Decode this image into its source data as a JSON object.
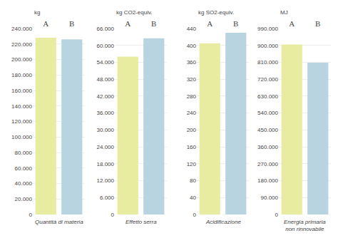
{
  "chart_data": [
    {
      "type": "bar",
      "xlabel": "Quantità di materia",
      "ylabel": "kg",
      "categories": [
        "A",
        "B"
      ],
      "values": [
        228000,
        226000
      ],
      "colors": [
        "#e8eca0",
        "#b8d4e0"
      ],
      "ylim": [
        0,
        240000
      ],
      "yticks": [
        0,
        {
          "value": 20000,
          "label": "20.000"
        },
        {
          "value": 40000,
          "label": "40.000"
        },
        {
          "value": 60000,
          "label": "60.000"
        },
        {
          "value": 80000,
          "label": "80.000"
        },
        {
          "value": 100000,
          "label": "100.000"
        },
        {
          "value": 120000,
          "label": "120.000"
        },
        {
          "value": 140000,
          "label": "140.000"
        },
        {
          "value": 160000,
          "label": "160.000"
        },
        {
          "value": 180000,
          "label": "180.000"
        },
        {
          "value": 200000,
          "label": "200.000"
        },
        {
          "value": 220000,
          "label": "220.000"
        },
        {
          "value": 240000,
          "label": "240.000"
        }
      ],
      "grid": true
    },
    {
      "type": "bar",
      "xlabel": "Effetto serra",
      "ylabel": "kg CO2-equiv.",
      "categories": [
        "A",
        "B"
      ],
      "values": [
        56000,
        62500
      ],
      "colors": [
        "#e8eca0",
        "#b8d4e0"
      ],
      "ylim": [
        0,
        66000
      ],
      "yticks": [
        0,
        {
          "value": 6000,
          "label": "6.000"
        },
        {
          "value": 12000,
          "label": "12.000"
        },
        {
          "value": 18000,
          "label": "18.000"
        },
        {
          "value": 24000,
          "label": "24.000"
        },
        {
          "value": 30000,
          "label": "30.000"
        },
        {
          "value": 36000,
          "label": "36.000"
        },
        {
          "value": 42000,
          "label": "42.000"
        },
        {
          "value": 48000,
          "label": "48.000"
        },
        {
          "value": 54000,
          "label": "54.000"
        },
        {
          "value": 60000,
          "label": "60.000"
        },
        {
          "value": 66000,
          "label": "66.000"
        }
      ],
      "grid": true
    },
    {
      "type": "bar",
      "xlabel": "Acidificazione",
      "ylabel": "kg SO2-equiv.",
      "categories": [
        "A",
        "B"
      ],
      "values": [
        405,
        430
      ],
      "colors": [
        "#e8eca0",
        "#b8d4e0"
      ],
      "ylim": [
        0,
        440
      ],
      "yticks": [
        0,
        40,
        80,
        120,
        160,
        200,
        240,
        280,
        320,
        360,
        400,
        440
      ],
      "grid": true
    },
    {
      "type": "bar",
      "xlabel": "Energia primaria\nnon rinnovabile",
      "ylabel": "MJ",
      "categories": [
        "A",
        "B"
      ],
      "values": [
        905000,
        808000
      ],
      "colors": [
        "#e8eca0",
        "#b8d4e0"
      ],
      "ylim": [
        0,
        990000
      ],
      "yticks": [
        0,
        {
          "value": 90000,
          "label": "90.000"
        },
        {
          "value": 180000,
          "label": "180.000"
        },
        {
          "value": 270000,
          "label": "270.000"
        },
        {
          "value": 360000,
          "label": "360.000"
        },
        {
          "value": 450000,
          "label": "450.000"
        },
        {
          "value": 540000,
          "label": "540.000"
        },
        {
          "value": 630000,
          "label": "630.000"
        },
        {
          "value": 720000,
          "label": "720.000"
        },
        {
          "value": 810000,
          "label": "810.000"
        },
        {
          "value": 900000,
          "label": "900.000"
        },
        {
          "value": 990000,
          "label": "990.000"
        }
      ],
      "grid": true
    }
  ]
}
